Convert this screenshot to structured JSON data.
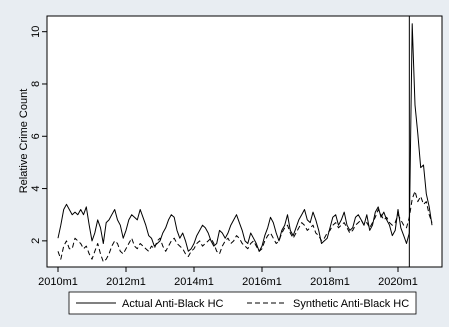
{
  "chart_data": {
    "type": "line",
    "title": "",
    "xlabel": "",
    "ylabel": "Relative Crime Count",
    "xlim": [
      0,
      132
    ],
    "ylim": [
      1,
      10.6
    ],
    "x_ticks": [
      {
        "t": 0,
        "label": "2010m1"
      },
      {
        "t": 24,
        "label": "2012m1"
      },
      {
        "t": 48,
        "label": "2014m1"
      },
      {
        "t": 72,
        "label": "2016m1"
      },
      {
        "t": 96,
        "label": "2018m1"
      },
      {
        "t": 120,
        "label": "2020m1"
      }
    ],
    "y_ticks": [
      2,
      4,
      6,
      8,
      10
    ],
    "grid": false,
    "legend_position": "bottom",
    "reference_line": {
      "t": 124,
      "label": ""
    },
    "series": [
      {
        "name": "Actual Anti-Black HC",
        "style": "solid",
        "values": [
          2.1,
          2.6,
          3.2,
          3.4,
          3.2,
          3.0,
          3.1,
          3.0,
          3.2,
          3.0,
          3.3,
          2.6,
          2.0,
          2.3,
          2.8,
          2.5,
          1.9,
          2.7,
          2.8,
          3.0,
          3.2,
          2.8,
          2.6,
          2.1,
          2.4,
          2.8,
          3.0,
          2.9,
          2.8,
          3.2,
          2.9,
          2.6,
          2.2,
          2.1,
          1.8,
          1.9,
          2.0,
          2.3,
          2.5,
          2.8,
          3.0,
          2.9,
          2.4,
          2.1,
          2.3,
          2.0,
          1.6,
          1.7,
          1.9,
          2.2,
          2.4,
          2.6,
          2.5,
          2.3,
          2.0,
          1.8,
          1.9,
          2.4,
          2.3,
          2.1,
          2.3,
          2.6,
          2.8,
          3.0,
          2.7,
          2.4,
          2.0,
          1.9,
          2.3,
          2.1,
          1.9,
          1.6,
          1.8,
          2.2,
          2.5,
          2.9,
          2.7,
          2.3,
          2.0,
          2.4,
          2.6,
          3.0,
          2.4,
          2.2,
          2.5,
          2.8,
          3.0,
          3.2,
          2.8,
          2.7,
          3.1,
          2.8,
          2.4,
          1.9,
          2.0,
          2.1,
          2.5,
          2.9,
          3.0,
          2.6,
          2.8,
          3.1,
          2.6,
          2.4,
          2.5,
          2.9,
          3.0,
          2.8,
          2.6,
          3.0,
          2.4,
          2.6,
          3.1,
          3.3,
          2.9,
          3.1,
          2.8,
          2.6,
          2.2,
          2.4,
          3.2,
          2.5,
          2.2,
          1.9,
          2.3,
          10.3,
          7.2,
          6.1,
          4.8,
          4.9,
          3.8,
          3.3,
          2.6
        ]
      },
      {
        "name": "Synthetic Anti-Black HC",
        "style": "dashed",
        "values": [
          1.6,
          1.3,
          1.8,
          2.0,
          1.7,
          1.7,
          2.1,
          2.0,
          1.9,
          1.7,
          1.8,
          1.5,
          1.3,
          1.6,
          1.9,
          1.5,
          1.2,
          1.3,
          1.5,
          1.8,
          2.0,
          1.9,
          1.6,
          1.5,
          1.7,
          1.9,
          2.1,
          1.8,
          1.7,
          1.9,
          1.8,
          1.7,
          1.6,
          1.8,
          1.7,
          2.0,
          2.1,
          1.8,
          1.6,
          1.8,
          2.0,
          2.1,
          1.9,
          1.8,
          1.7,
          1.5,
          1.4,
          1.6,
          1.7,
          1.9,
          2.0,
          1.8,
          1.9,
          2.0,
          2.1,
          1.9,
          1.6,
          1.5,
          1.8,
          2.0,
          2.1,
          1.9,
          2.0,
          2.2,
          2.1,
          1.9,
          1.8,
          1.7,
          1.9,
          2.0,
          1.8,
          1.6,
          1.7,
          2.0,
          2.2,
          2.3,
          2.1,
          1.9,
          2.0,
          2.3,
          2.5,
          2.6,
          2.3,
          2.1,
          2.3,
          2.5,
          2.7,
          2.6,
          2.4,
          2.5,
          2.6,
          2.3,
          2.2,
          2.0,
          2.1,
          2.3,
          2.4,
          2.6,
          2.7,
          2.5,
          2.6,
          2.7,
          2.5,
          2.3,
          2.4,
          2.6,
          2.7,
          2.8,
          2.6,
          2.7,
          2.5,
          2.7,
          2.9,
          3.2,
          3.0,
          2.8,
          2.9,
          2.7,
          2.6,
          2.7,
          3.0,
          2.8,
          2.6,
          2.5,
          2.9,
          3.6,
          3.9,
          3.5,
          3.7,
          3.4,
          3.5,
          3.0,
          2.7
        ]
      }
    ]
  }
}
